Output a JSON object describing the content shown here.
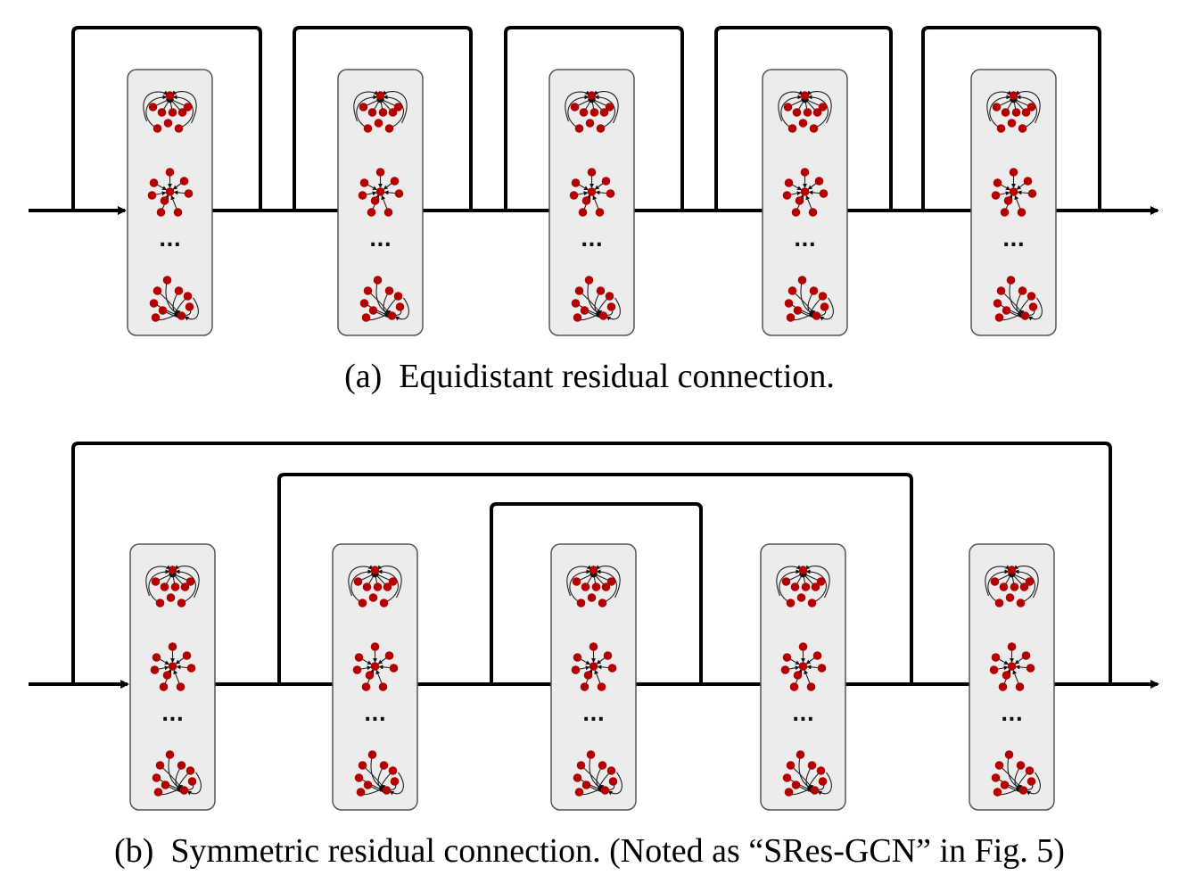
{
  "panels": [
    {
      "id": "a",
      "caption": "(a)  Equidistant residual connection.",
      "block_count": 5,
      "skip_style": "equidistant"
    },
    {
      "id": "b",
      "caption": "(b)  Symmetric residual connection. (Noted as “SRes-GCN” in Fig. 5)",
      "block_count": 5,
      "skip_style": "symmetric"
    }
  ],
  "block_contents": [
    "graph-cluster",
    "graph-star",
    "ellipsis",
    "graph-fan"
  ],
  "ellipsis_text": "...",
  "colors": {
    "node": "#b30000",
    "block_fill": "#ececec",
    "line": "#000000"
  }
}
